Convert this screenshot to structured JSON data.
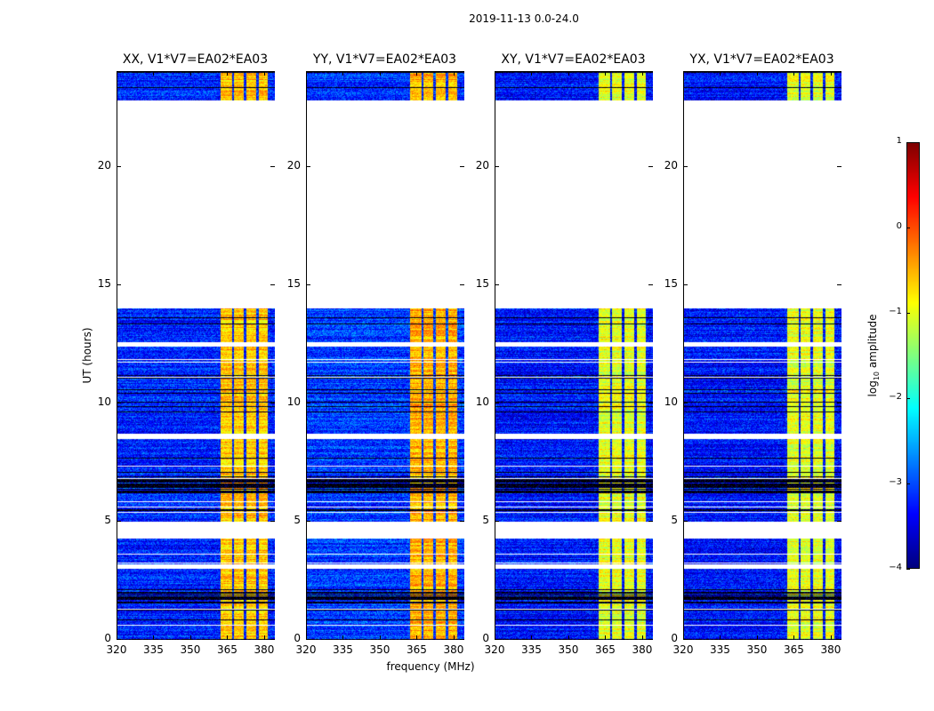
{
  "chart_data": {
    "type": "heatmap",
    "title": "2019-11-13 0.0-24.0",
    "xlabel": "frequency (MHz)",
    "ylabel": "UT (hours)",
    "xlim": [
      320,
      384
    ],
    "ylim": [
      0,
      24
    ],
    "xticks": [
      320,
      335,
      350,
      365,
      380
    ],
    "yticks": [
      0,
      5,
      10,
      15,
      20
    ],
    "colormap": "jet",
    "colorbar": {
      "label": "log10 amplitude",
      "label_base": "log",
      "label_sub": "10",
      "label_rest": " amplitude",
      "range": [
        -4,
        1
      ],
      "ticks": [
        1,
        0,
        -1,
        -2,
        -3,
        -4
      ]
    },
    "data_segments_hours": [
      [
        0.0,
        3.0
      ],
      [
        3.2,
        4.3
      ],
      [
        5.0,
        8.5
      ],
      [
        8.7,
        12.4
      ],
      [
        12.6,
        14.0
      ],
      [
        22.8,
        24.0
      ]
    ],
    "flagged_black_hours": [
      [
        6.2,
        6.8
      ],
      [
        8.5,
        8.7
      ],
      [
        1.5,
        2.0
      ]
    ],
    "bright_channel_blocks_mhz": [
      [
        362,
        366.5
      ],
      [
        367.5,
        371.5
      ],
      [
        372.5,
        376.5
      ],
      [
        377.5,
        381
      ]
    ],
    "panels": [
      {
        "title": "XX, V1*V7=EA02*EA03",
        "background_log_amp": -3.2,
        "band_log_amp": -0.6
      },
      {
        "title": "YY, V1*V7=EA02*EA03",
        "background_log_amp": -3.1,
        "band_log_amp": -0.5
      },
      {
        "title": "XY, V1*V7=EA02*EA03",
        "background_log_amp": -3.3,
        "band_log_amp": -1.0
      },
      {
        "title": "YX, V1*V7=EA02*EA03",
        "background_log_amp": -3.3,
        "band_log_amp": -1.0
      }
    ]
  }
}
